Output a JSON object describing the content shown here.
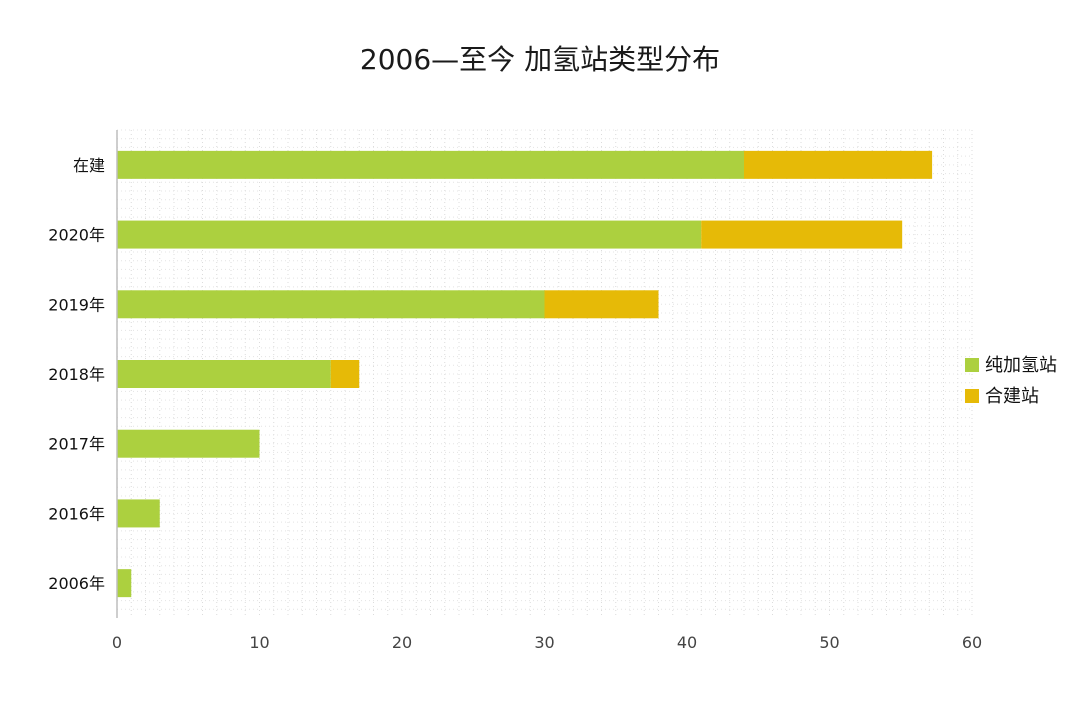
{
  "chart_data": {
    "type": "bar",
    "orientation": "horizontal",
    "stacked": true,
    "title": "2006—至今 加氢站类型分布",
    "categories": [
      "在建",
      "2020年",
      "2019年",
      "2018年",
      "2017年",
      "2016年",
      "2006年"
    ],
    "series": [
      {
        "name": "纯加氢站",
        "values": [
          44,
          41,
          30,
          15,
          10,
          3,
          1
        ],
        "color": "#acd03f"
      },
      {
        "name": "合建站",
        "values": [
          13.2,
          14.1,
          8,
          2,
          0,
          0,
          0
        ],
        "color": "#e6ba07"
      }
    ],
    "xlim": [
      0,
      60
    ],
    "xticks": [
      0,
      10,
      20,
      30,
      40,
      50,
      60
    ],
    "grid": true,
    "legend_position": "right"
  }
}
